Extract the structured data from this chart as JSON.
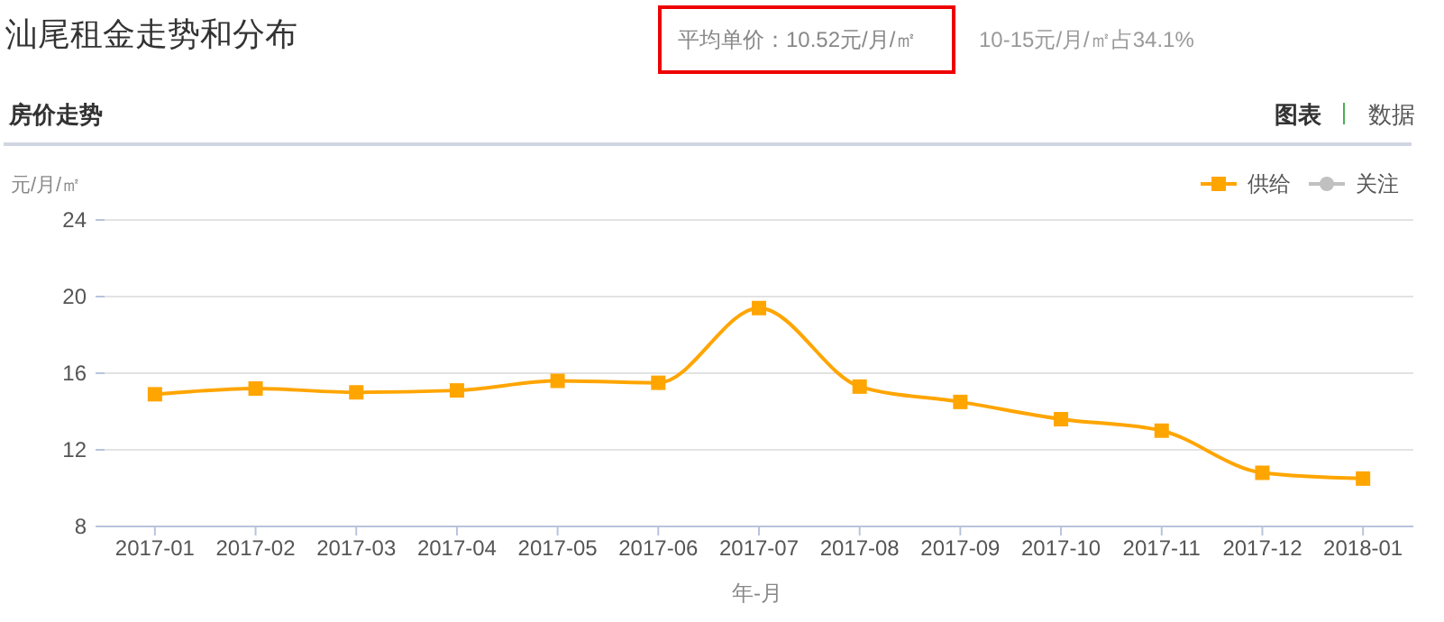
{
  "chart_data": {
    "type": "line",
    "title": "汕尾租金走势和分布",
    "subtitle": "房价走势",
    "ylabel": "元/月/㎡",
    "xlabel": "年-月",
    "annotations": [
      "平均单价：10.52元/月/㎡",
      "10-15元/月/㎡占34.1%",
      "图表",
      "数据"
    ],
    "categories": [
      "2017-01",
      "2017-02",
      "2017-03",
      "2017-04",
      "2017-05",
      "2017-06",
      "2017-07",
      "2017-08",
      "2017-09",
      "2017-10",
      "2017-11",
      "2017-12",
      "2018-01"
    ],
    "series": [
      {
        "name": "供给",
        "color": "#ffa500",
        "values": [
          14.9,
          15.2,
          15.0,
          15.1,
          15.6,
          15.5,
          19.4,
          15.3,
          14.5,
          13.6,
          13.0,
          10.8,
          10.5
        ]
      },
      {
        "name": "关注",
        "color": "#c0c0c0",
        "values": [
          null,
          null,
          null,
          null,
          null,
          null,
          null,
          null,
          null,
          null,
          null,
          null,
          null
        ]
      }
    ],
    "ylim": [
      8,
      24
    ],
    "yticks": [
      8,
      12,
      16,
      20,
      24
    ],
    "grid": "y",
    "legend": "top right",
    "marker": "square",
    "line_style": "solid"
  }
}
